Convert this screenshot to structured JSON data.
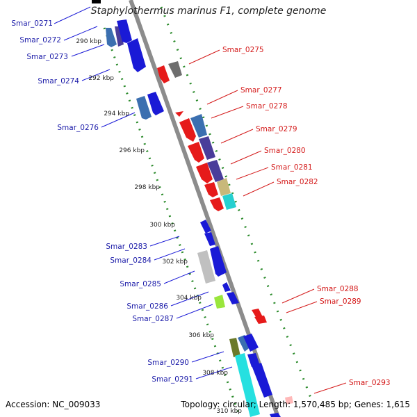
{
  "title": "Staphylothermus marinus F1, complete genome",
  "footer": {
    "accession": "Accession: NC_009033",
    "summary": "Topology: circular; Length: 1,570,485 bp; Genes: 1,615"
  },
  "colors": {
    "backbone": "#8c8c8c",
    "forward_label": "#1a1aa8",
    "reverse_label": "#d41a1a",
    "tick": "#2a8a2a"
  },
  "scale_labels": [
    "290 kbp",
    "292 kbp",
    "294 kbp",
    "296 kbp",
    "298 kbp",
    "300 kbp",
    "302 kbp",
    "304 kbp",
    "306 kbp",
    "308 kbp",
    "310 kbp"
  ],
  "forward_gene_labels": [
    "Smar_0271",
    "Smar_0272",
    "Smar_0273",
    "Smar_0274",
    "Smar_0276",
    "Smar_0283",
    "Smar_0284",
    "Smar_0285",
    "Smar_0286",
    "Smar_0287",
    "Smar_0290",
    "Smar_0291"
  ],
  "reverse_gene_labels": [
    "Smar_0275",
    "Smar_0277",
    "Smar_0278",
    "Smar_0279",
    "Smar_0280",
    "Smar_0281",
    "Smar_0282",
    "Smar_0288",
    "Smar_0289",
    "Smar_0293"
  ]
}
